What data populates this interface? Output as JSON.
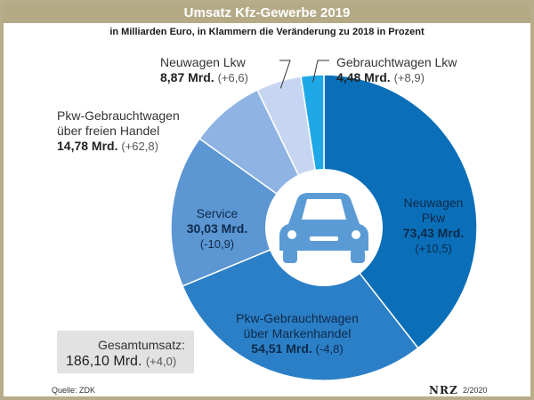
{
  "header": {
    "title": "Umsatz Kfz-Gewerbe 2019",
    "subtitle": "in Milliarden Euro, in Klammern die Veränderung zu 2018 in Prozent"
  },
  "chart_data": {
    "type": "pie",
    "variant": "donut",
    "title": "Umsatz Kfz-Gewerbe 2019",
    "unit": "Mrd. Euro",
    "slices": [
      {
        "name": "Neuwagen Pkw",
        "label_lines": [
          "Neuwagen",
          "Pkw"
        ],
        "value": 73.43,
        "value_text": "73,43 Mrd.",
        "change_text": "(+10,5)",
        "color": "#0a6fb8"
      },
      {
        "name": "Pkw-Gebrauchtwagen über Markenhandel",
        "label_lines": [
          "Pkw-Gebrauchtwagen",
          "über Markenhandel"
        ],
        "value": 54.51,
        "value_text": "54,51 Mrd.",
        "change_text": "(-4,8)",
        "color": "#2b7fc6"
      },
      {
        "name": "Service",
        "label_lines": [
          "Service"
        ],
        "value": 30.03,
        "value_text": "30,03 Mrd.",
        "change_text": "(-10,9)",
        "color": "#5c96d3"
      },
      {
        "name": "Pkw-Gebrauchtwagen über freien Handel",
        "label_lines": [
          "Pkw-Gebrauchtwagen",
          "über freien Handel"
        ],
        "value": 14.78,
        "value_text": "14,78 Mrd.",
        "change_text": "(+62,8)",
        "color": "#8fb4e3"
      },
      {
        "name": "Neuwagen Lkw",
        "label_lines": [
          "Neuwagen Lkw"
        ],
        "value": 8.87,
        "value_text": "8,87 Mrd.",
        "change_text": "(+6,6)",
        "color": "#c6d6f2"
      },
      {
        "name": "Gebrauchtwagen Lkw",
        "label_lines": [
          "Gebrauchtwagen Lkw"
        ],
        "value": 4.48,
        "value_text": "4,48 Mrd.",
        "change_text": "(+8,9)",
        "color": "#1ea8e8"
      }
    ],
    "total": {
      "label": "Gesamtumsatz:",
      "value": 186.1,
      "value_text": "186,10 Mrd.",
      "change_text": "(+4,0)"
    }
  },
  "footer": {
    "source": "Quelle: ZDK",
    "brand": "NRZ",
    "date": "2/2020"
  },
  "icons": {
    "center": "car-icon"
  },
  "colors": {
    "title_bar": "#b5aa86",
    "car": "#5b9bd5",
    "hole": "#ffffff"
  }
}
